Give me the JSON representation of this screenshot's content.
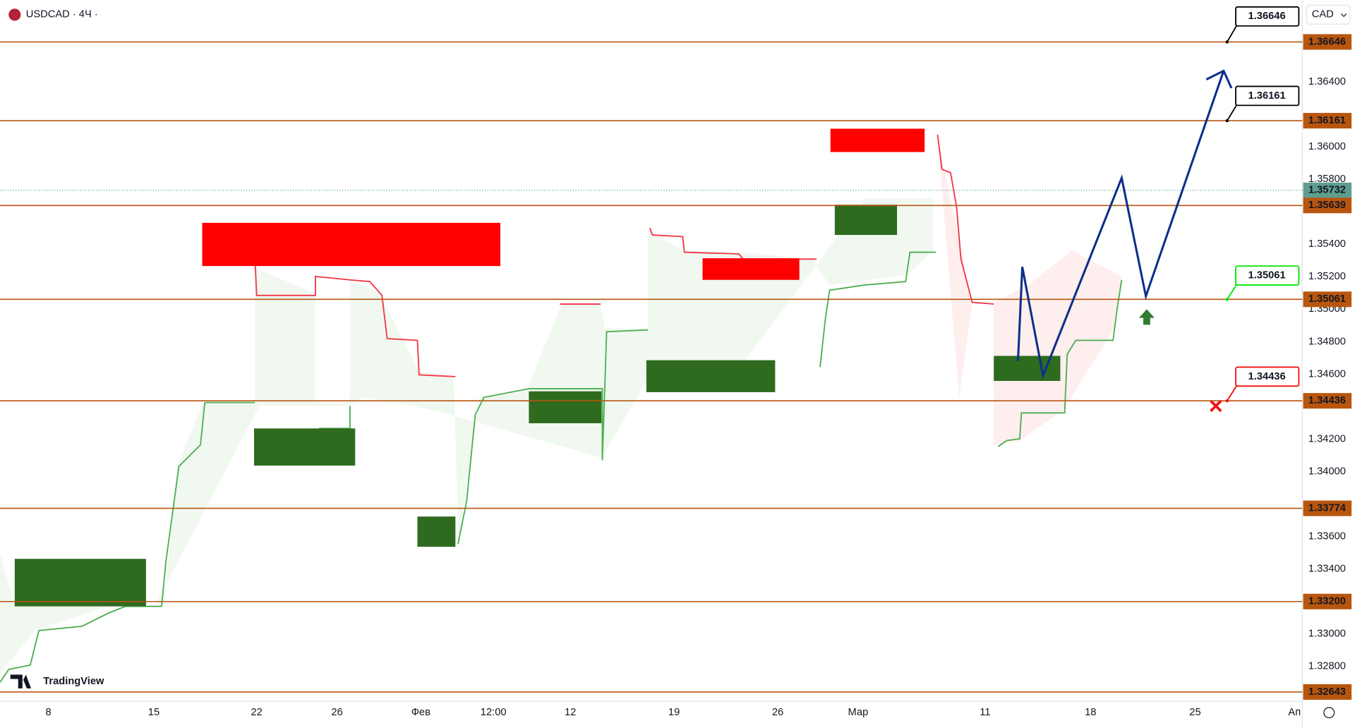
{
  "header": {
    "symbol": "USDCAD · 4Ч ·",
    "currency": "CAD"
  },
  "brand": "TradingView",
  "price_axis": {
    "ticks": [
      {
        "value": 1.364,
        "label": "1.36400"
      },
      {
        "value": 1.36,
        "label": "1.36000"
      },
      {
        "value": 1.358,
        "label": "1.35800"
      },
      {
        "value": 1.354,
        "label": "1.35400"
      },
      {
        "value": 1.352,
        "label": "1.35200"
      },
      {
        "value": 1.35,
        "label": "1.35000"
      },
      {
        "value": 1.348,
        "label": "1.34800"
      },
      {
        "value": 1.346,
        "label": "1.34600"
      },
      {
        "value": 1.342,
        "label": "1.34200"
      },
      {
        "value": 1.34,
        "label": "1.34000"
      },
      {
        "value": 1.336,
        "label": "1.33600"
      },
      {
        "value": 1.334,
        "label": "1.33400"
      },
      {
        "value": 1.33,
        "label": "1.33000"
      },
      {
        "value": 1.328,
        "label": "1.32800"
      }
    ]
  },
  "levels": [
    {
      "value": 1.36646,
      "label": "1.36646",
      "callout": "black"
    },
    {
      "value": 1.36161,
      "label": "1.36161",
      "callout": "black"
    },
    {
      "value": 1.35639,
      "label": "1.35639"
    },
    {
      "value": 1.35061,
      "label": "1.35061",
      "callout": "green"
    },
    {
      "value": 1.34436,
      "label": "1.34436",
      "callout": "red"
    },
    {
      "value": 1.33774,
      "label": "1.33774"
    },
    {
      "value": 1.332,
      "label": "1.33200"
    },
    {
      "value": 1.32643,
      "label": "1.32643"
    }
  ],
  "current_price": {
    "value": 1.35732,
    "label": "1.35732"
  },
  "time_axis": [
    "8",
    "15",
    "22",
    "26",
    "Фев",
    "12:00",
    "12",
    "19",
    "26",
    "Мар",
    "11",
    "18",
    "25",
    "Ап"
  ]
}
